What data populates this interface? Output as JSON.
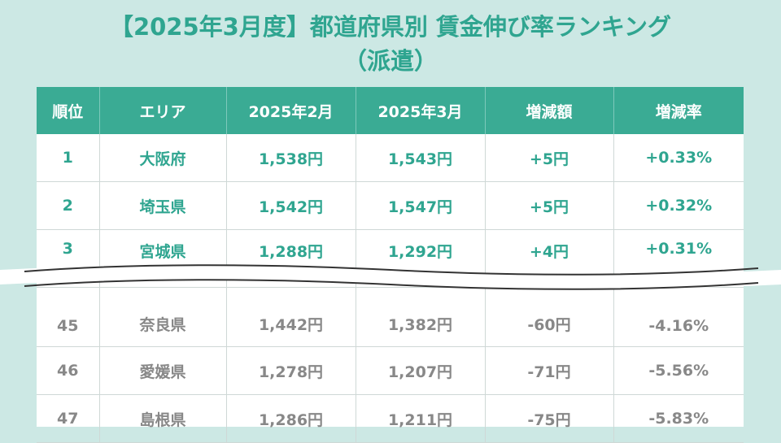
{
  "title": {
    "line1": "【2025年3月度】都道府県別 賃金伸び率ランキング",
    "line2": "（派遣）"
  },
  "colors": {
    "background": "#cce8e4",
    "accent": "#3aab94",
    "title_text": "#2fa590",
    "top_rows_text": "#2fa590",
    "bottom_rows_text": "#888888"
  },
  "chart_data": {
    "type": "table",
    "columns": [
      "順位",
      "エリア",
      "2025年2月",
      "2025年3月",
      "増減額",
      "増減率"
    ],
    "top_rows": [
      [
        "1",
        "大阪府",
        "1,538円",
        "1,543円",
        "+5円",
        "+0.33%"
      ],
      [
        "2",
        "埼玉県",
        "1,542円",
        "1,547円",
        "+5円",
        "+0.32%"
      ],
      [
        "3",
        "宮城県",
        "1,288円",
        "1,292円",
        "+4円",
        "+0.31%"
      ]
    ],
    "bottom_rows": [
      [
        "45",
        "奈良県",
        "1,442円",
        "1,382円",
        "-60円",
        "-4.16%"
      ],
      [
        "46",
        "愛媛県",
        "1,278円",
        "1,207円",
        "-71円",
        "-5.56%"
      ],
      [
        "47",
        "島根県",
        "1,286円",
        "1,211円",
        "-75円",
        "-5.83%"
      ]
    ]
  }
}
